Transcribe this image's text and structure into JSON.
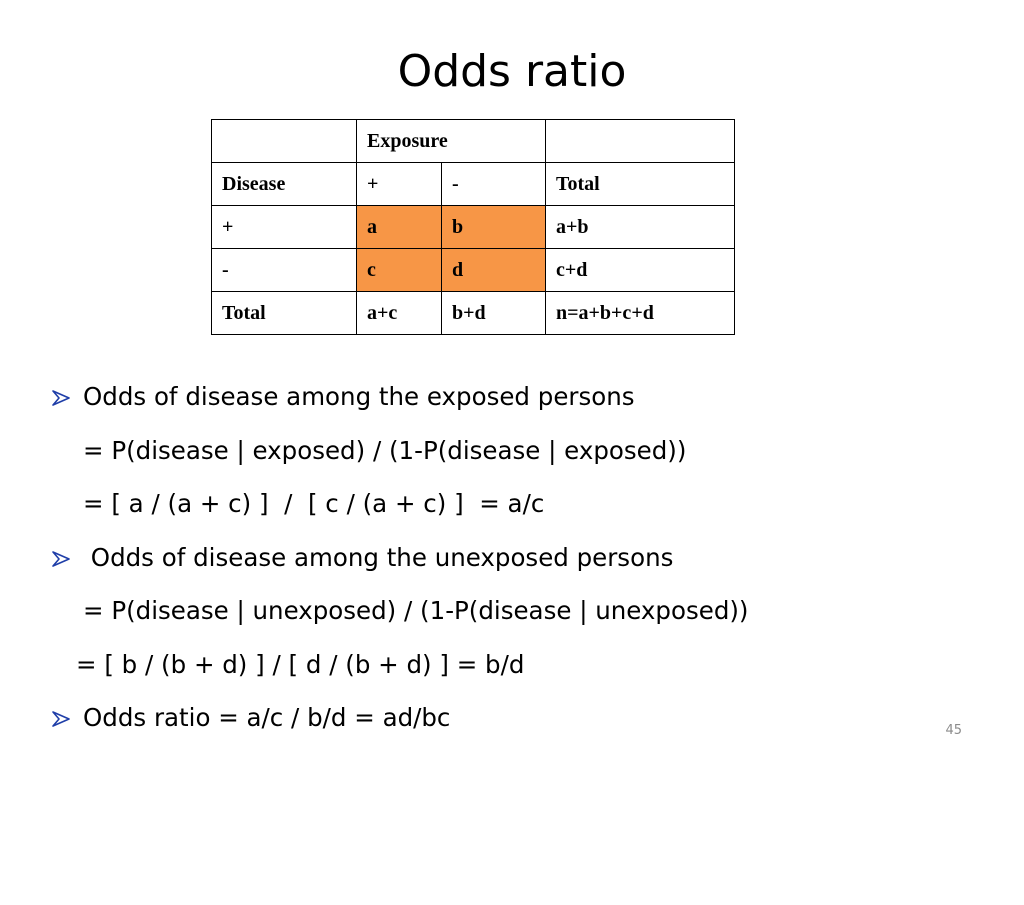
{
  "title": "Odds ratio",
  "table": {
    "rows": [
      [
        "",
        "Exposure",
        ""
      ],
      [
        "Disease",
        "+",
        "-",
        "Total"
      ],
      [
        "+",
        "a",
        "b",
        "a+b"
      ],
      [
        "-",
        "c",
        "d",
        "c+d"
      ],
      [
        "Total",
        "a+c",
        "b+d",
        "n=a+b+c+d"
      ]
    ],
    "highlight_color": "#f79646"
  },
  "bullets": [
    {
      "type": "bullet",
      "text": "Odds of disease among the exposed persons"
    },
    {
      "type": "continuation",
      "text": "= P(disease | exposed) / (1-P(disease | exposed))"
    },
    {
      "type": "continuation",
      "text": "= [ a / (a + c) ]  /  [ c / (a + c) ]  = a/c"
    },
    {
      "type": "bullet",
      "text": " Odds of disease among the unexposed persons"
    },
    {
      "type": "continuation",
      "text": "= P(disease | unexposed) / (1-P(disease | unexposed))"
    },
    {
      "type": "continuation2",
      "text": "= [ b / (b + d) ] / [ d / (b + d) ] = b/d"
    },
    {
      "type": "bullet",
      "text": "Odds ratio = a/c / b/d = ad/bc"
    }
  ],
  "bullet_icon": "arrowhead-bullet-icon",
  "bullet_color": "#1f3ea8",
  "slide_number": "45"
}
